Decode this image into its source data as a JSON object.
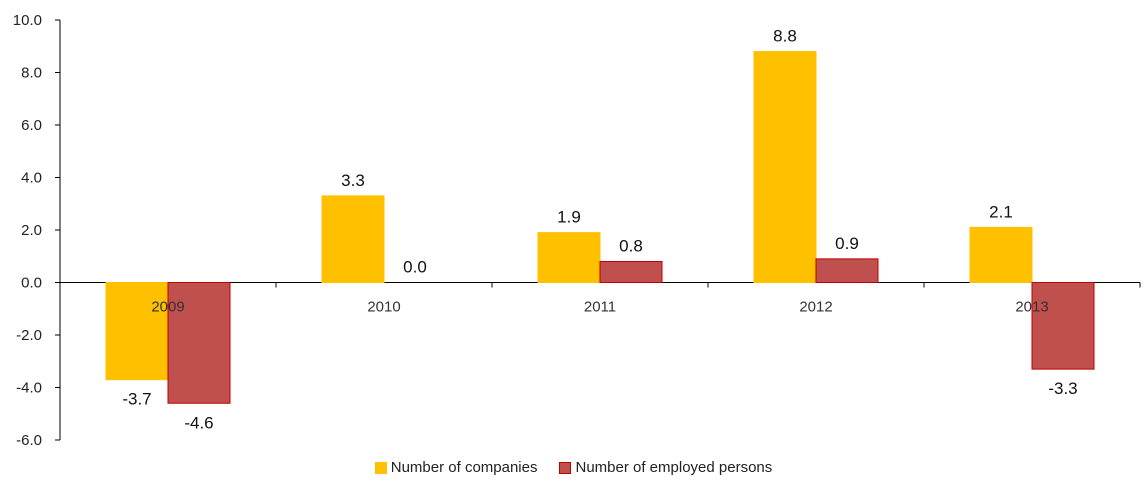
{
  "chart_data": {
    "type": "bar",
    "title": "",
    "xlabel": "",
    "ylabel": "",
    "categories": [
      "2009",
      "2010",
      "2011",
      "2012",
      "2013"
    ],
    "series": [
      {
        "name": "Number of companies",
        "values": [
          -3.7,
          3.3,
          1.9,
          8.8,
          2.1
        ],
        "labels": [
          "-3.7",
          "3.3",
          "1.9",
          "8.8",
          "2.1"
        ],
        "color": "#FFC000",
        "border": "#FFC000"
      },
      {
        "name": "Number of employed persons",
        "values": [
          -4.6,
          0.0,
          0.8,
          0.9,
          -3.3
        ],
        "labels": [
          "-4.6",
          "0.0",
          "0.8",
          "0.9",
          "-3.3"
        ],
        "color": "#C0504D",
        "border": "#C00000"
      }
    ],
    "ylim": [
      -6,
      10
    ],
    "yticks": [
      "10.0",
      "8.0",
      "6.0",
      "4.0",
      "2.0",
      "0.0",
      "-2.0",
      "-4.0",
      "-6.0"
    ],
    "grid": false,
    "legend_position": "bottom"
  }
}
